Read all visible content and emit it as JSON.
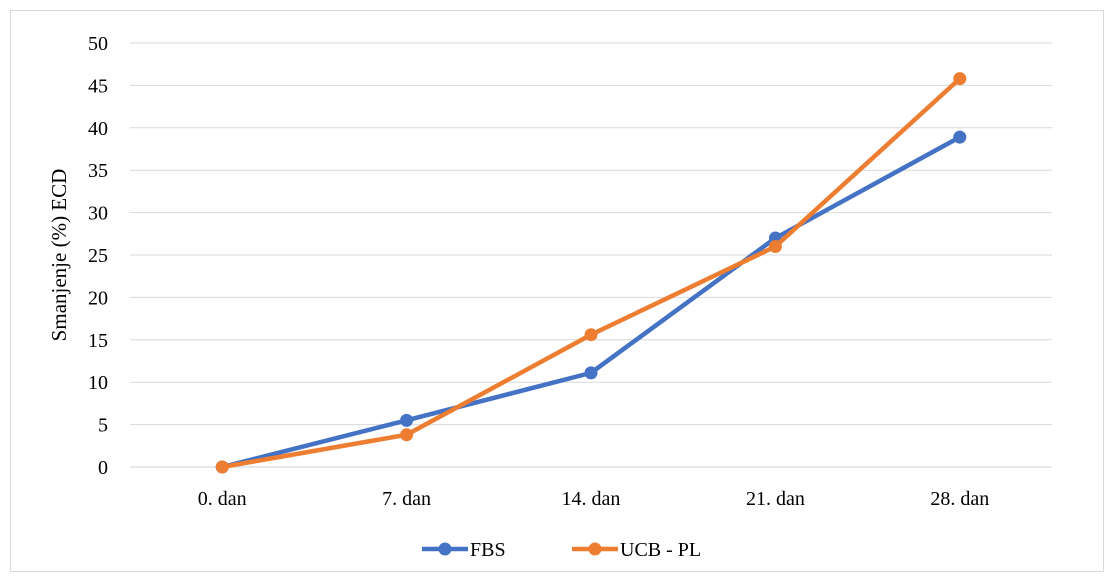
{
  "chart_data": {
    "type": "line",
    "title": "",
    "xlabel": "",
    "ylabel": "Smanjenje (%) ECD",
    "categories": [
      "0. dan",
      "7. dan",
      "14. dan",
      "21. dan",
      "28. dan"
    ],
    "ylim": [
      0,
      50
    ],
    "yticks": [
      0,
      5,
      10,
      15,
      20,
      25,
      30,
      35,
      40,
      45,
      50
    ],
    "grid": true,
    "legend_position": "bottom",
    "series": [
      {
        "name": "FBS",
        "color": "#4472C4",
        "values": [
          0,
          5.5,
          11.1,
          27.0,
          38.9
        ]
      },
      {
        "name": "UCB - PL",
        "color": "#ED7D31",
        "values": [
          0,
          3.8,
          15.6,
          26.0,
          45.8
        ]
      }
    ]
  }
}
